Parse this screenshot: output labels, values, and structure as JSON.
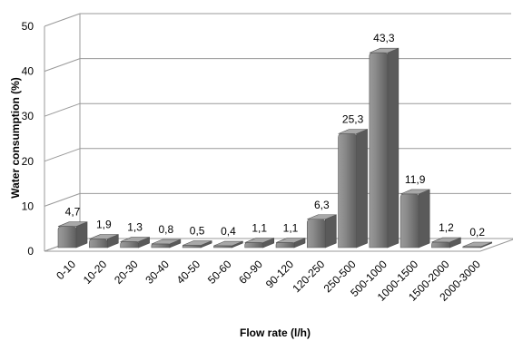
{
  "chart_data": {
    "type": "bar",
    "title": "",
    "xlabel": "Flow rate (l/h)",
    "ylabel": "Water consumption (%)",
    "ylim": [
      0,
      50
    ],
    "yticks": [
      "0",
      "10",
      "20",
      "30",
      "40",
      "50"
    ],
    "categories": [
      "0-10",
      "10-20",
      "20-30",
      "30-40",
      "40-50",
      "50-60",
      "60-90",
      "90-120",
      "120-250",
      "250-500",
      "500-1000",
      "1000-1500",
      "1500-2000",
      "2000-3000"
    ],
    "values": [
      4.7,
      1.9,
      1.3,
      0.8,
      0.5,
      0.4,
      1.1,
      1.1,
      6.3,
      25.3,
      43.3,
      11.9,
      1.2,
      0.2
    ],
    "value_labels": [
      "4,7",
      "1,9",
      "1,3",
      "0,8",
      "0,5",
      "0,4",
      "1,1",
      "1,1",
      "6,3",
      "25,3",
      "43,3",
      "11,9",
      "1,2",
      "0,2"
    ],
    "grid": true,
    "legend": false,
    "style": "3d-cylinder",
    "bar_color": "#8c8c8c"
  }
}
